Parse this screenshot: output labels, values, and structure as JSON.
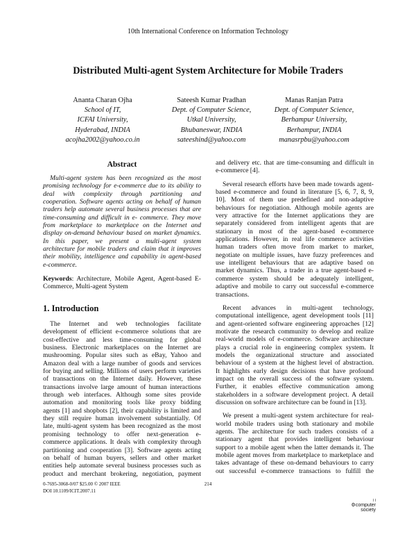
{
  "header": {
    "conference": "10th International Conference on Information Technology"
  },
  "title": "Distributed Multi-agent System Architecture for Mobile Traders",
  "authors": [
    {
      "name": "Ananta Charan Ojha",
      "affiliation": [
        "School of IT,",
        "ICFAI University,",
        "Hyderabad, INDIA"
      ],
      "email": "acojha2002@yahoo.co.in"
    },
    {
      "name": "Sateesh Kumar Pradhan",
      "affiliation": [
        "Dept. of Computer Science,",
        "Utkal University,",
        "Bhubaneswar, INDIA"
      ],
      "email": "sateeshind@yahoo.com"
    },
    {
      "name": "Manas Ranjan Patra",
      "affiliation": [
        "Dept. of Computer Science,",
        "Berhampur University,",
        "Berhampur, INDIA"
      ],
      "email": "manasrpbu@yahoo.com"
    }
  ],
  "abstract": {
    "heading": "Abstract",
    "lines": [
      "Multi-agent system has been recognized as the most",
      "promising technology for e-commerce due to its ability to",
      "deal with complexity through partitioning and",
      "cooperation. Software agents acting on behalf of human",
      "traders help automate several business processes that are",
      "time-consuming and difficult in e- commerce. They move",
      "from marketplace to marketplace on the Internet and",
      "display on-demand behaviour based on market dynamics.",
      "In this paper, we present a multi-agent system",
      "architecture for mobile traders and claim that it improves",
      "their mobility, intelligence and capability in agent-based",
      "e-commerce."
    ]
  },
  "keywords": {
    "label": "Keywords",
    "lines": [
      ": Architecture, Mobile Agent, Agent-based E-",
      "Commerce, Multi-agent System"
    ]
  },
  "introduction": {
    "heading": "1. Introduction",
    "left_lines": [
      "The Internet and web technologies facilitate",
      "development of efficient e-commerce solutions that are",
      "cost-effective and less time-consuming for global",
      "business. Electronic marketplaces on the Internet are",
      "mushrooming. Popular sites such as eBay, Yahoo and",
      "Amazon deal with a large number of goods and services",
      "for buying and selling. Millions of users perform varieties",
      "of transactions on the Internet daily. However, these",
      "transactions involve large amount of human interactions",
      "through web interfaces. Although some sites provide",
      "automation and monitoring tools like proxy bidding",
      "agents [1] and shopbots [2], their capability is limited and",
      "they still require human involvement substantially. Of",
      "late, multi-agent system has been recognized as the most",
      "promising technology to offer next-generation e-",
      "commerce applications. It deals with complexity through",
      "partitioning and cooperation [3]. Software agents acting",
      "on behalf of human buyers, sellers and other market",
      "entities help automate several business processes such as",
      "product and merchant brokering, negotiation, payment"
    ],
    "right_paragraphs": [
      {
        "lines": [
          "and delivery etc. that are time-consuming and difficult in",
          "e-commerce [4]."
        ]
      },
      {
        "lines": [
          "Several research efforts have been made towards agent-",
          "based e-commerce and found in literature [5, 6, 7, 8, 9,",
          "10]. Most of them use predefined and non-adaptive",
          "behaviours for negotiation. Although mobile agents are",
          "very attractive for the Internet applications they are",
          "separately considered from intelligent agents that are",
          "stationary in most of the agent-based e-commerce",
          "applications. However, in real life commerce activities",
          "human traders often move from market to market,",
          "negotiate on multiple issues, have fuzzy preferences and",
          "use intelligent behaviours that are adaptive based on",
          "market dynamics. Thus, a trader in a true agent-based e-",
          "commerce system should be adequately intelligent,",
          "adaptive and mobile to carry out successful e-commerce",
          "transactions."
        ]
      },
      {
        "lines": [
          "Recent advances in multi-agent technology,",
          "computational intelligence, agent development tools [11]",
          "and agent-oriented software engineering approaches [12]",
          "motivate the research community to develop and realize",
          "real-world models of e-commerce. Software architecture",
          "plays a crucial role in engineering complex system. It",
          "models the organizational structure and associated",
          "behaviour of a system at the highest level of abstraction.",
          "It highlights early design decisions that have profound",
          "impact on the overall success of the software system.",
          "Further, it enables effective communication among",
          "stakeholders in a software development project. A detail",
          "discussion on software architecture can be found in [13]."
        ]
      },
      {
        "lines": [
          "We present a multi-agent system architecture for real-",
          "world mobile traders using both stationary and mobile",
          "agents. The architecture for such traders consists of a",
          "stationary agent that provides intelligent behaviour",
          "support to a mobile agent when the latter demands it. The",
          "mobile agent moves from marketplace to marketplace and",
          "takes advantage of these on-demand behaviours to carry",
          "out successful e-commerce transactions to fulfill the"
        ],
        "continues": true
      }
    ]
  },
  "footer": {
    "isbn": "0-7695-3068-0/07 $25.00 © 2007 IEEE",
    "doi": "DOI 10.1109/ICIT.2007.11",
    "page_number": "214",
    "logo_text": [
      "computer",
      "society"
    ]
  }
}
